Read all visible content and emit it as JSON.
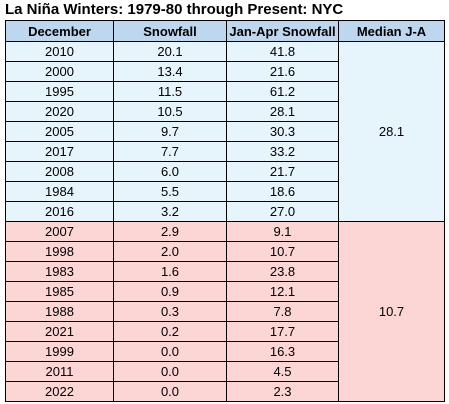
{
  "title": "La Niña Winters: 1979-80 through Present: NYC",
  "columns": [
    "December",
    "Snowfall",
    "Jan-Apr Snowfall",
    "Median J-A"
  ],
  "colors": {
    "header_bg": "#bdd7ee",
    "group_above_bg": "#e6f4fc",
    "group_below_bg": "#fcd5d5"
  },
  "groups": [
    {
      "median": "28.1",
      "rows": [
        {
          "year": "2010",
          "snowfall": "20.1",
          "jan_apr": "41.8"
        },
        {
          "year": "2000",
          "snowfall": "13.4",
          "jan_apr": "21.6"
        },
        {
          "year": "1995",
          "snowfall": "11.5",
          "jan_apr": "61.2"
        },
        {
          "year": "2020",
          "snowfall": "10.5",
          "jan_apr": "28.1"
        },
        {
          "year": "2005",
          "snowfall": "9.7",
          "jan_apr": "30.3"
        },
        {
          "year": "2017",
          "snowfall": "7.7",
          "jan_apr": "33.2"
        },
        {
          "year": "2008",
          "snowfall": "6.0",
          "jan_apr": "21.7"
        },
        {
          "year": "1984",
          "snowfall": "5.5",
          "jan_apr": "18.6"
        },
        {
          "year": "2016",
          "snowfall": "3.2",
          "jan_apr": "27.0"
        }
      ]
    },
    {
      "median": "10.7",
      "rows": [
        {
          "year": "2007",
          "snowfall": "2.9",
          "jan_apr": "9.1"
        },
        {
          "year": "1998",
          "snowfall": "2.0",
          "jan_apr": "10.7"
        },
        {
          "year": "1983",
          "snowfall": "1.6",
          "jan_apr": "23.8"
        },
        {
          "year": "1985",
          "snowfall": "0.9",
          "jan_apr": "12.1"
        },
        {
          "year": "1988",
          "snowfall": "0.3",
          "jan_apr": "7.8"
        },
        {
          "year": "2021",
          "snowfall": "0.2",
          "jan_apr": "17.7"
        },
        {
          "year": "1999",
          "snowfall": "0.0",
          "jan_apr": "16.3"
        },
        {
          "year": "2011",
          "snowfall": "0.0",
          "jan_apr": "4.5"
        },
        {
          "year": "2022",
          "snowfall": "0.0",
          "jan_apr": "2.3"
        }
      ]
    }
  ]
}
